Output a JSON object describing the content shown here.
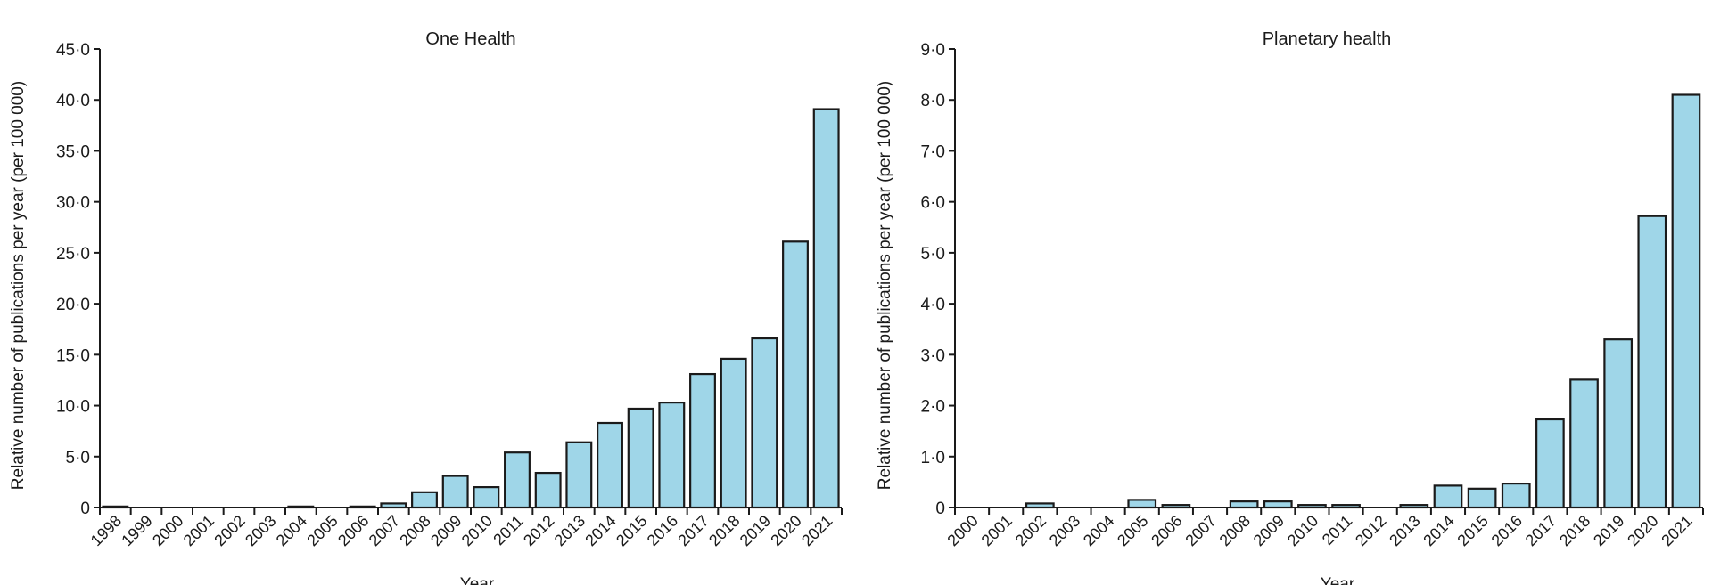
{
  "chart_data": [
    {
      "type": "bar",
      "title": "One Health",
      "xlabel": "Year",
      "ylabel": "Relative number of publications per year (per 100 000)",
      "ylim": [
        0,
        45
      ],
      "ytick_labels": [
        "0",
        "5·0",
        "10·0",
        "15·0",
        "20·0",
        "25·0",
        "30·0",
        "35·0",
        "40·0",
        "45·0"
      ],
      "categories": [
        "1998",
        "1999",
        "2000",
        "2001",
        "2002",
        "2003",
        "2004",
        "2005",
        "2006",
        "2007",
        "2008",
        "2009",
        "2010",
        "2011",
        "2012",
        "2013",
        "2014",
        "2015",
        "2016",
        "2017",
        "2018",
        "2019",
        "2020",
        "2021"
      ],
      "values": [
        0.1,
        0,
        0,
        0,
        0,
        0,
        0.1,
        0,
        0.1,
        0.4,
        1.5,
        3.1,
        2.0,
        5.4,
        3.4,
        6.4,
        8.3,
        9.7,
        10.3,
        13.1,
        14.6,
        16.6,
        26.1,
        39.1
      ],
      "bar_color": "#9fd6e8",
      "grid": false
    },
    {
      "type": "bar",
      "title": "Planetary health",
      "xlabel": "Year",
      "ylabel": "Relative number of publications per year (per 100 000)",
      "ylim": [
        0,
        9
      ],
      "ytick_labels": [
        "0",
        "1·0",
        "2·0",
        "3·0",
        "4·0",
        "5·0",
        "6·0",
        "7·0",
        "8·0",
        "9·0"
      ],
      "categories": [
        "2000",
        "2001",
        "2002",
        "2003",
        "2004",
        "2005",
        "2006",
        "2007",
        "2008",
        "2009",
        "2010",
        "2011",
        "2012",
        "2013",
        "2014",
        "2015",
        "2016",
        "2017",
        "2018",
        "2019",
        "2020",
        "2021"
      ],
      "values": [
        0,
        0,
        0.08,
        0,
        0,
        0.15,
        0.05,
        0,
        0.12,
        0.12,
        0.05,
        0.05,
        0,
        0.05,
        0.43,
        0.37,
        0.47,
        1.73,
        2.51,
        3.3,
        5.72,
        8.1
      ],
      "bar_color": "#9fd6e8",
      "grid": false
    }
  ]
}
